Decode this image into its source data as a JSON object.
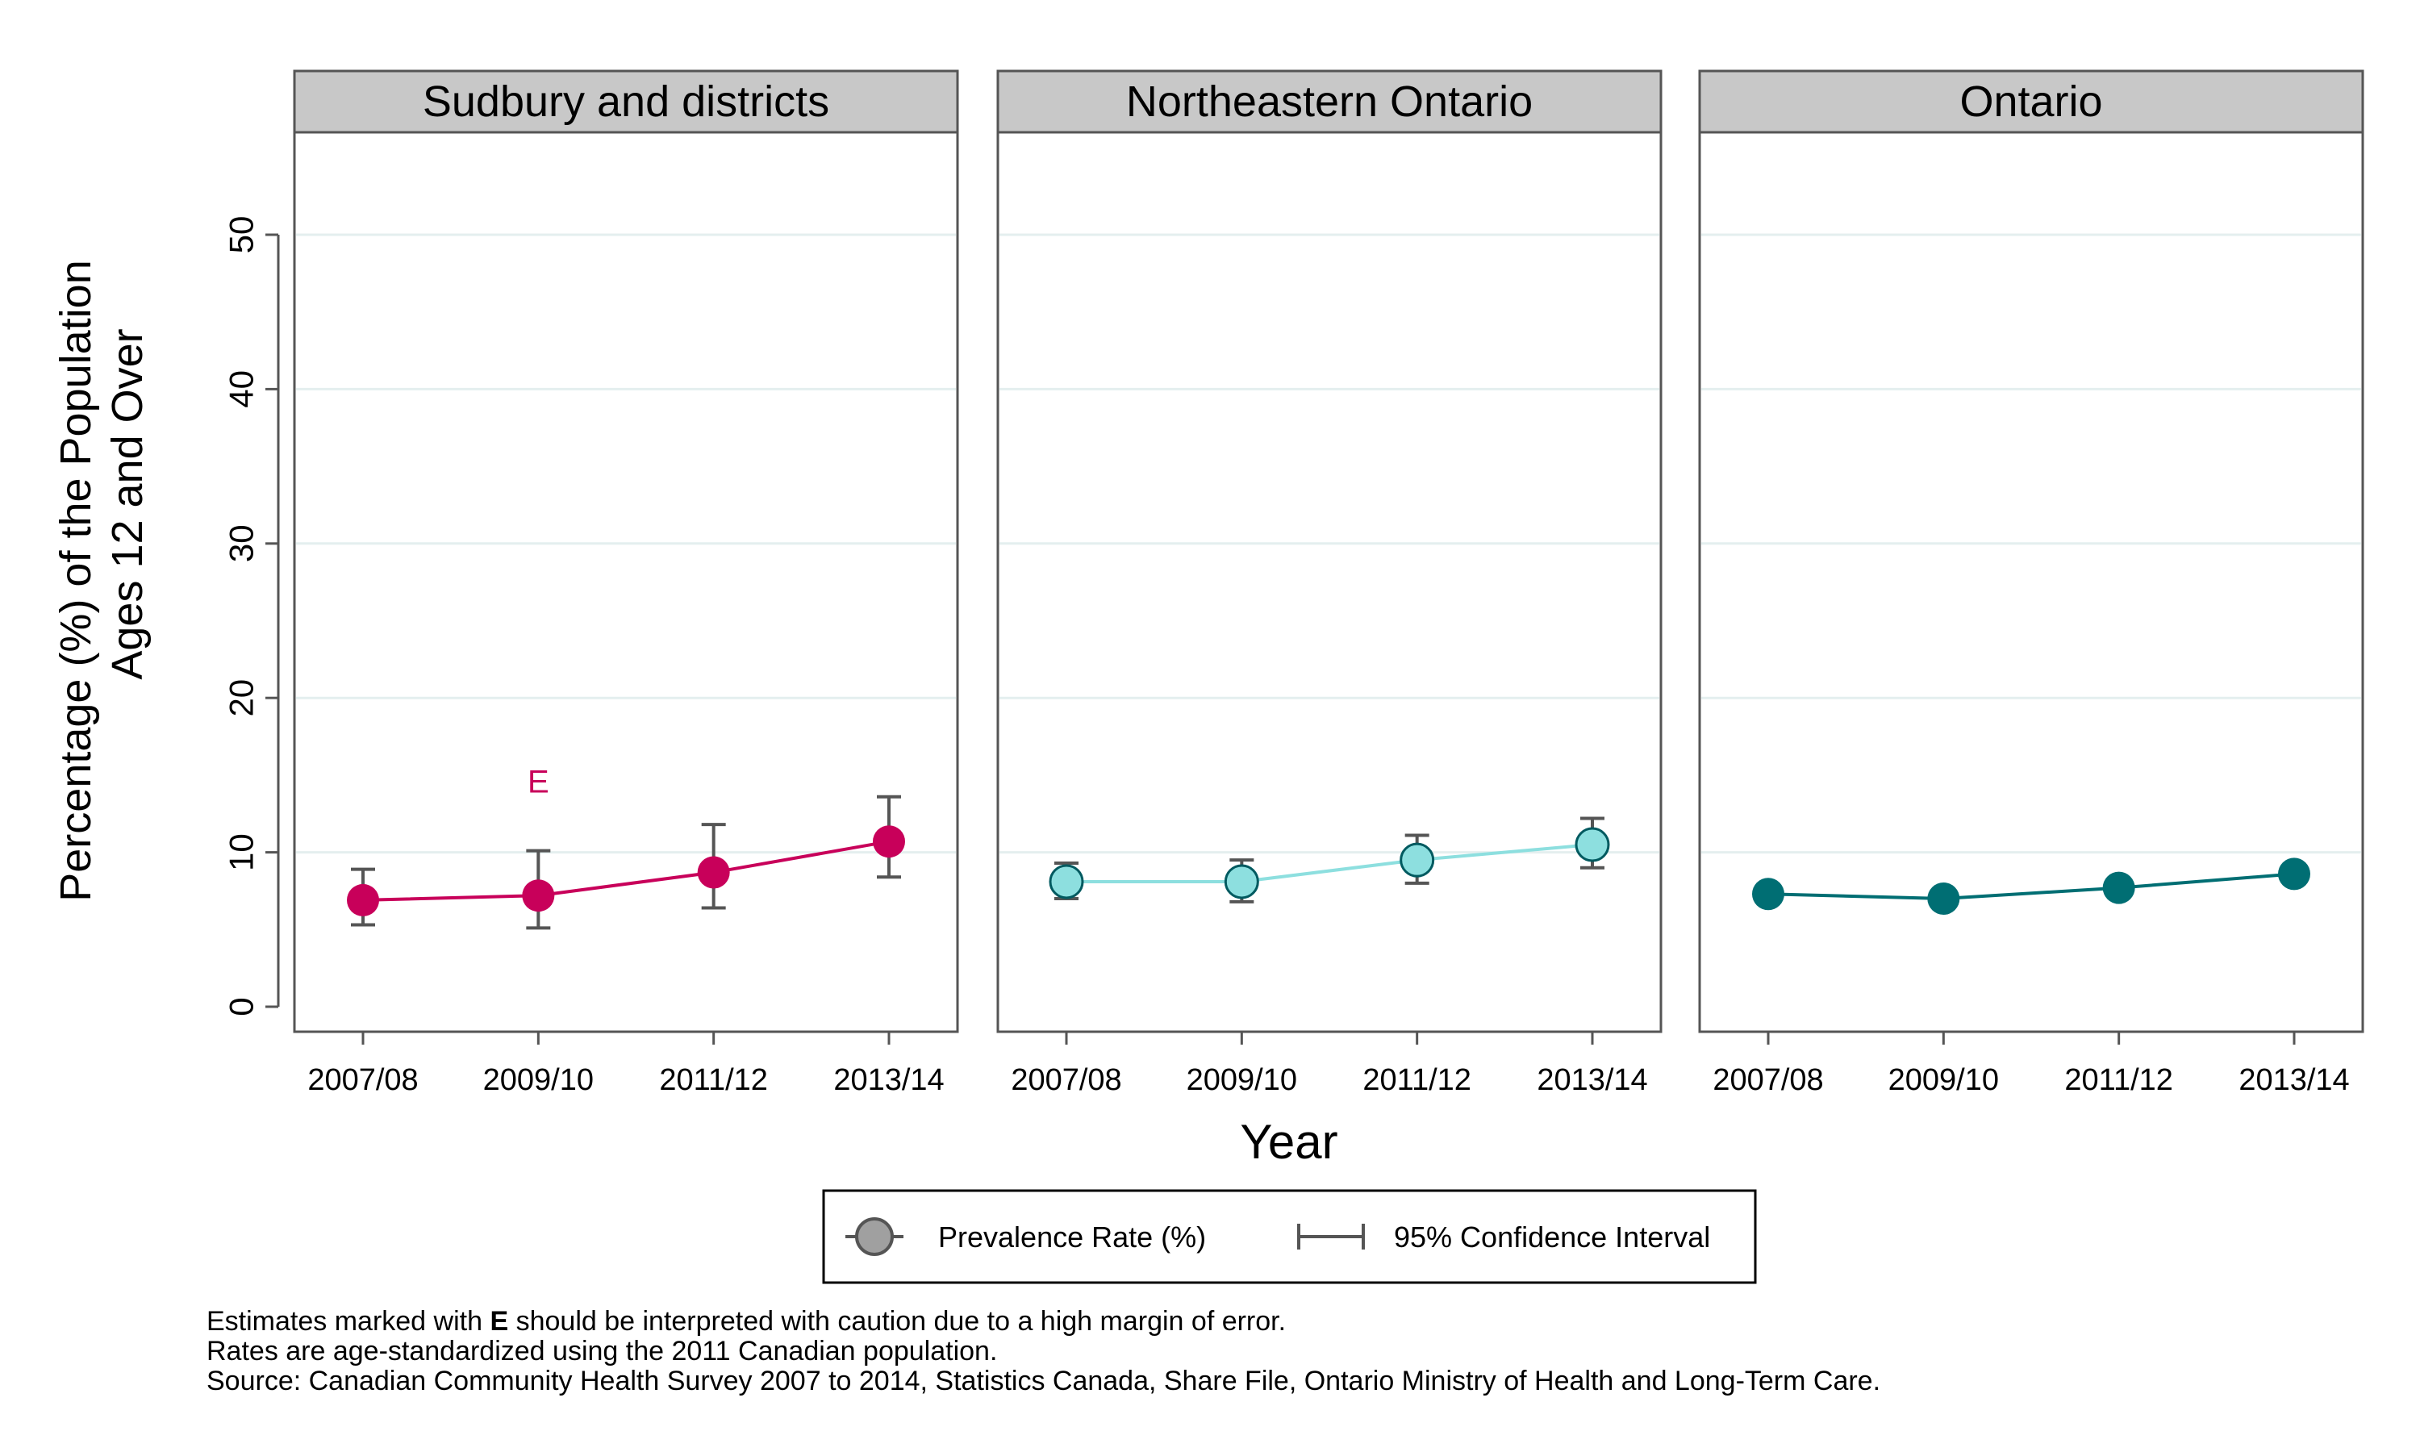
{
  "chart_data": {
    "type": "line",
    "x_title": "Year",
    "y_title_lines": [
      "Percentage (%) of the Population",
      "Ages 12 and Over"
    ],
    "categories": [
      "2007/08",
      "2009/10",
      "2011/12",
      "2013/14"
    ],
    "y_ticks": [
      0,
      10,
      20,
      30,
      40,
      50
    ],
    "ylim": [
      -1.5,
      57
    ],
    "grid": true,
    "panels": [
      {
        "title": "Sudbury and districts",
        "color": "#c8005a",
        "fill": "#c8005a",
        "values": [
          6.9,
          7.2,
          8.7,
          10.7
        ],
        "ci_low": [
          5.3,
          5.1,
          6.4,
          8.4
        ],
        "ci_high": [
          8.9,
          10.1,
          11.8,
          13.6
        ],
        "flags": [
          "",
          "E",
          "",
          ""
        ]
      },
      {
        "title": "Northeastern Ontario",
        "color": "#8ddfdf",
        "fill": "#8ddfdf",
        "values": [
          8.1,
          8.1,
          9.5,
          10.5
        ],
        "ci_low": [
          7.0,
          6.8,
          8.0,
          9.0
        ],
        "ci_high": [
          9.3,
          9.5,
          11.1,
          12.2
        ],
        "flags": [
          "",
          "",
          "",
          ""
        ]
      },
      {
        "title": "Ontario",
        "color": "#006e73",
        "fill": "#006e73",
        "values": [
          7.3,
          7.0,
          7.7,
          8.6
        ],
        "ci_low": [
          7.1,
          6.8,
          7.5,
          8.4
        ],
        "ci_high": [
          7.5,
          7.2,
          7.9,
          8.8
        ],
        "flags": [
          "",
          "",
          "",
          ""
        ]
      }
    ],
    "legend": {
      "point_label": "Prevalence Rate (%)",
      "ci_label": "95% Confidence Interval",
      "position": "bottom-center"
    }
  },
  "footnotes": {
    "line1_pre": "Estimates marked with ",
    "line1_bold": "E",
    "line1_post": " should be interpreted with caution due to a high margin of error.",
    "line2": "Rates are age-standardized using the 2011 Canadian population.",
    "line3": "Source: Canadian Community Health Survey 2007 to 2014, Statistics Canada, Share File, Ontario Ministry of Health and Long-Term Care."
  }
}
